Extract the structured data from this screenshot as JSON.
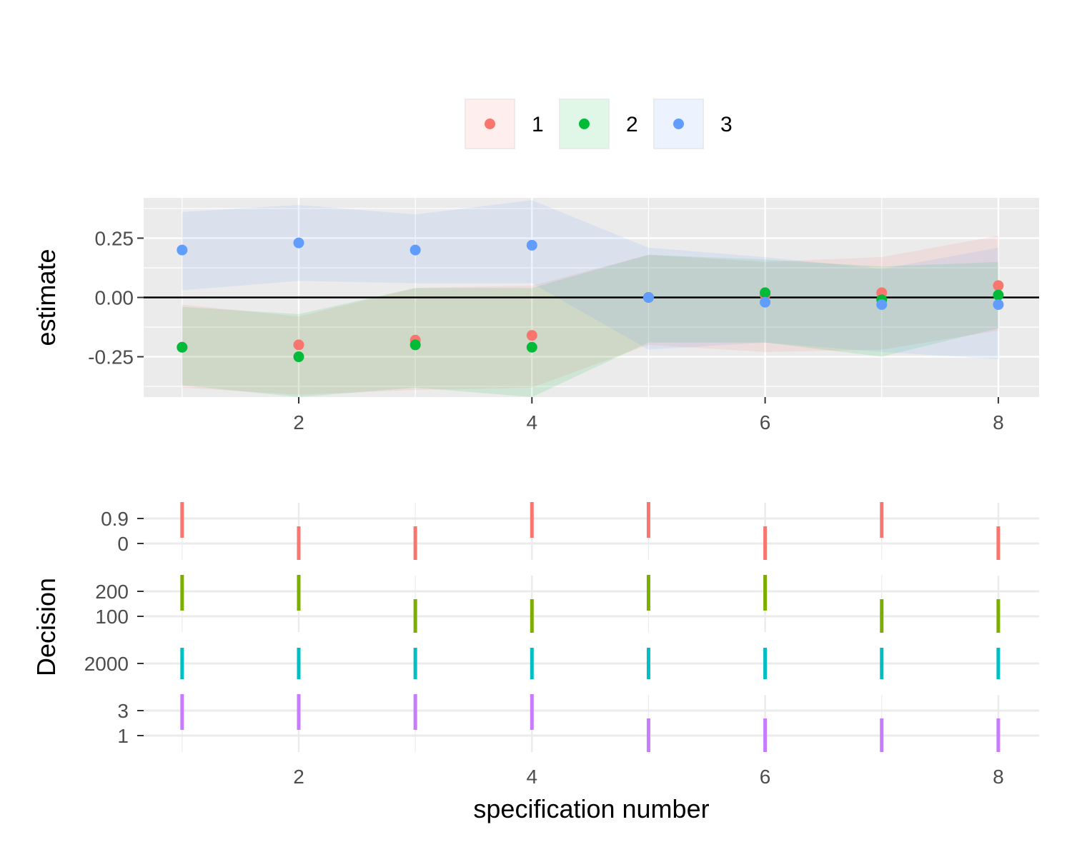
{
  "chart_data": [
    {
      "type": "scatter",
      "title": "",
      "xlabel": "",
      "ylabel": "estimate",
      "xlim": [
        0.67,
        8.35
      ],
      "ylim": [
        -0.42,
        0.42
      ],
      "x_ticks": [
        2,
        4,
        6,
        8
      ],
      "y_ticks": [
        -0.25,
        0.0,
        0.25
      ],
      "y_tick_labels": [
        "-0.25",
        "0.00",
        "0.25"
      ],
      "x_tick_labels": [
        "2",
        "4",
        "6",
        "8"
      ],
      "reference_line_y": 0,
      "grid": true,
      "legend_position": "top",
      "series": [
        {
          "name": "1",
          "color": "#F8766D",
          "x": [
            1,
            2,
            3,
            4,
            5,
            6,
            7,
            8
          ],
          "values": [
            -0.21,
            -0.2,
            -0.18,
            -0.16,
            0.0,
            0.01,
            0.02,
            0.05
          ],
          "ci_low": [
            -0.38,
            -0.41,
            -0.39,
            -0.38,
            -0.2,
            -0.23,
            -0.22,
            -0.14
          ],
          "ci_high": [
            -0.03,
            -0.08,
            0.04,
            0.05,
            0.18,
            0.15,
            0.17,
            0.26
          ]
        },
        {
          "name": "2",
          "color": "#00BA38",
          "x": [
            1,
            2,
            3,
            4,
            5,
            6,
            7,
            8
          ],
          "values": [
            -0.21,
            -0.25,
            -0.2,
            -0.21,
            0.0,
            0.02,
            -0.01,
            0.01
          ],
          "ci_low": [
            -0.37,
            -0.42,
            -0.38,
            -0.42,
            -0.19,
            -0.19,
            -0.25,
            -0.13
          ],
          "ci_high": [
            -0.04,
            -0.07,
            0.04,
            0.04,
            0.18,
            0.16,
            0.13,
            0.15
          ]
        },
        {
          "name": "3",
          "color": "#619CFF",
          "x": [
            1,
            2,
            3,
            4,
            5,
            6,
            7,
            8
          ],
          "values": [
            0.2,
            0.23,
            0.2,
            0.22,
            0.0,
            -0.02,
            -0.03,
            -0.03
          ],
          "ci_low": [
            0.03,
            0.07,
            0.06,
            0.06,
            -0.22,
            -0.19,
            -0.23,
            -0.26
          ],
          "ci_high": [
            0.36,
            0.39,
            0.35,
            0.41,
            0.21,
            0.17,
            0.12,
            0.21
          ]
        }
      ]
    },
    {
      "type": "scatter",
      "title": "",
      "xlabel": "specification number",
      "ylabel": "Decision",
      "xlim": [
        0.67,
        8.35
      ],
      "x_ticks": [
        2,
        4,
        6,
        8
      ],
      "x_tick_labels": [
        "2",
        "4",
        "6",
        "8"
      ],
      "grid": true,
      "marker": "vertical-line",
      "groups": [
        {
          "color": "#F8766D",
          "levels": [
            "0.9",
            "0"
          ],
          "values": [
            "0.9",
            "0",
            "0",
            "0.9",
            "0.9",
            "0",
            "0.9",
            "0"
          ]
        },
        {
          "color": "#7CAE00",
          "levels": [
            "200",
            "100"
          ],
          "values": [
            "200",
            "200",
            "100",
            "100",
            "200",
            "200",
            "100",
            "100"
          ]
        },
        {
          "color": "#00BFC4",
          "levels": [
            "2000"
          ],
          "values": [
            "2000",
            "2000",
            "2000",
            "2000",
            "2000",
            "2000",
            "2000",
            "2000"
          ]
        },
        {
          "color": "#C77CFF",
          "levels": [
            "3",
            "1"
          ],
          "values": [
            "3",
            "3",
            "3",
            "3",
            "1",
            "1",
            "1",
            "1"
          ]
        }
      ]
    }
  ]
}
